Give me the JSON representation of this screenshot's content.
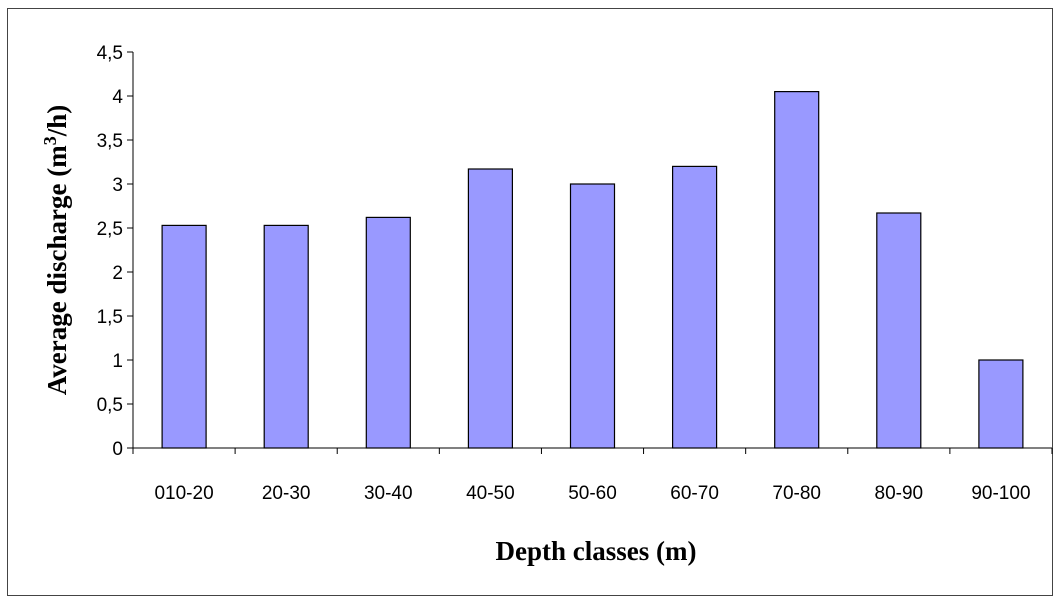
{
  "chart_data": {
    "type": "bar",
    "title": "",
    "xlabel": "Depth classes (m)",
    "ylabel": {
      "prefix": "Average discharge (m",
      "superscript": "3",
      "suffix": "/h)"
    },
    "categories": [
      "010-20",
      "20-30",
      "30-40",
      "40-50",
      "50-60",
      "60-70",
      "70-80",
      "80-90",
      "90-100"
    ],
    "values": [
      2.53,
      2.53,
      2.62,
      3.17,
      3.0,
      3.2,
      4.05,
      2.67,
      1.0
    ],
    "ylim": [
      0,
      4.5
    ],
    "yticks": [
      {
        "value": 0,
        "label": "0"
      },
      {
        "value": 0.5,
        "label": "0,5"
      },
      {
        "value": 1,
        "label": "1"
      },
      {
        "value": 1.5,
        "label": "1,5"
      },
      {
        "value": 2,
        "label": "2"
      },
      {
        "value": 2.5,
        "label": "2,5"
      },
      {
        "value": 3,
        "label": "3"
      },
      {
        "value": 3.5,
        "label": "3,5"
      },
      {
        "value": 4,
        "label": "4"
      },
      {
        "value": 4.5,
        "label": "4,5"
      }
    ],
    "grid": false,
    "legend": "none",
    "colors": {
      "bar_fill": "#9999ff",
      "bar_stroke": "#000000",
      "axis": "#000000"
    }
  }
}
